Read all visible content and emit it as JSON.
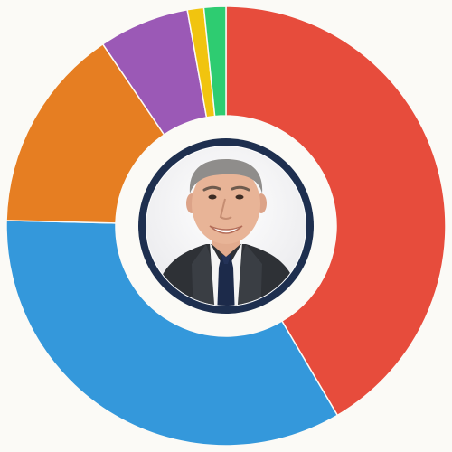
{
  "chart_data": {
    "type": "pie",
    "categories": [
      "",
      "",
      "",
      "",
      "",
      ""
    ],
    "values": [
      41.2,
      33.6,
      15.0,
      6.6,
      1.2,
      1.6
    ],
    "colors": [
      "#e74c3c",
      "#3498db",
      "#e67e22",
      "#9b59b6",
      "#f1c40f",
      "#2ecc71"
    ],
    "title": "",
    "legend": "none",
    "center_image": "portrait-photo"
  }
}
